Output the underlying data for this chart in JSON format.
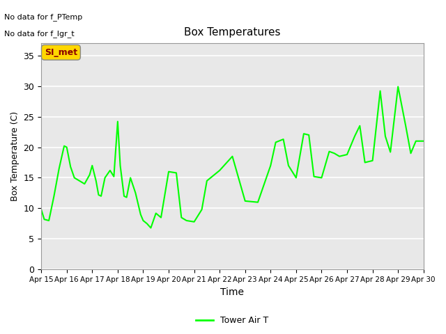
{
  "title": "Box Temperatures",
  "xlabel": "Time",
  "ylabel": "Box Temperature (C)",
  "no_data_lines": [
    "No data for f_PTemp",
    "No data for f_lgr_t"
  ],
  "legend_label": "Tower Air T",
  "legend_box_label": "SI_met",
  "line_color": "#00FF00",
  "legend_box_color": "#FFD700",
  "legend_box_text_color": "#8B0000",
  "fig_bg_color": "#FFFFFF",
  "plot_bg_color": "#E8E8E8",
  "ylim": [
    0,
    37
  ],
  "yticks": [
    0,
    5,
    10,
    15,
    20,
    25,
    30,
    35
  ],
  "x_labels": [
    "Apr 15",
    "Apr 16",
    "Apr 17",
    "Apr 18",
    "Apr 19",
    "Apr 20",
    "Apr 21",
    "Apr 22",
    "Apr 23",
    "Apr 24",
    "Apr 25",
    "Apr 26",
    "Apr 27",
    "Apr 28",
    "Apr 29",
    "Apr 30"
  ],
  "tower_air_t_x": [
    0.0,
    0.12,
    0.3,
    0.5,
    0.7,
    0.9,
    1.0,
    1.15,
    1.3,
    1.5,
    1.7,
    1.9,
    2.0,
    2.15,
    2.25,
    2.35,
    2.5,
    2.7,
    2.85,
    3.0,
    3.1,
    3.25,
    3.35,
    3.5,
    3.7,
    3.9,
    4.0,
    4.15,
    4.3,
    4.5,
    4.7,
    5.0,
    5.3,
    5.5,
    5.7,
    6.0,
    6.3,
    6.5,
    7.0,
    7.5,
    8.0,
    8.5,
    9.0,
    9.2,
    9.5,
    9.7,
    10.0,
    10.3,
    10.5,
    10.7,
    11.0,
    11.3,
    11.5,
    11.7,
    12.0,
    12.3,
    12.5,
    12.7,
    13.0,
    13.3,
    13.5,
    13.7,
    14.0,
    14.3,
    14.5,
    14.7,
    15.0
  ],
  "tower_air_t_y": [
    9.8,
    8.2,
    8.0,
    12.0,
    16.5,
    20.2,
    20.0,
    16.8,
    15.0,
    14.5,
    14.0,
    15.5,
    17.0,
    14.5,
    12.2,
    12.0,
    15.0,
    16.2,
    15.2,
    24.2,
    17.0,
    12.0,
    11.8,
    15.0,
    12.5,
    9.0,
    8.0,
    7.5,
    6.8,
    9.2,
    8.5,
    16.0,
    15.8,
    8.5,
    8.0,
    7.8,
    9.8,
    14.5,
    16.2,
    18.5,
    11.2,
    11.0,
    17.0,
    20.8,
    21.3,
    17.0,
    15.0,
    22.2,
    22.0,
    15.2,
    15.0,
    19.3,
    19.0,
    18.5,
    18.8,
    21.8,
    23.5,
    17.5,
    17.8,
    29.2,
    21.8,
    19.2,
    29.9,
    23.5,
    19.0,
    21.0,
    21.0
  ]
}
